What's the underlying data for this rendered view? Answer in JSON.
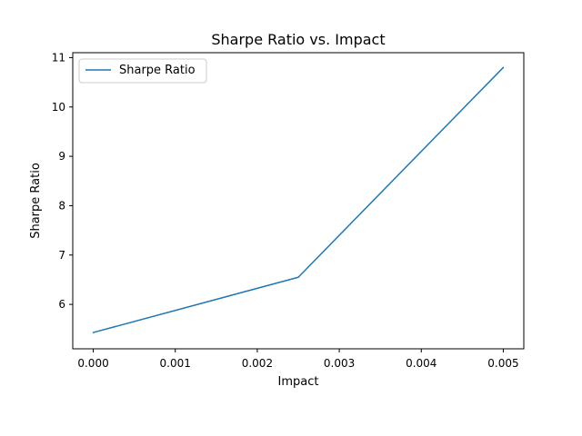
{
  "chart_data": {
    "type": "line",
    "title": "Sharpe Ratio vs. Impact",
    "xlabel": "Impact",
    "ylabel": "Sharpe Ratio",
    "x": [
      0.0,
      0.0025,
      0.005
    ],
    "series": [
      {
        "name": "Sharpe Ratio",
        "values": [
          5.43,
          6.55,
          10.8
        ],
        "color": "#1f77b4"
      }
    ],
    "xlim": [
      -0.00025,
      0.00525
    ],
    "ylim": [
      5.1,
      11.1
    ],
    "xticks": [
      "0.000",
      "0.001",
      "0.002",
      "0.003",
      "0.004",
      "0.005"
    ],
    "xtick_values": [
      0.0,
      0.001,
      0.002,
      0.003,
      0.004,
      0.005
    ],
    "yticks": [
      "6",
      "7",
      "8",
      "9",
      "10",
      "11"
    ],
    "ytick_values": [
      6,
      7,
      8,
      9,
      10,
      11
    ],
    "grid": false,
    "legend_position": "top-left"
  }
}
